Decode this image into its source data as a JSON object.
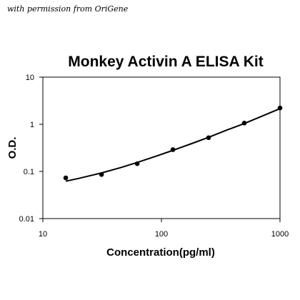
{
  "credit": "with permission from OriGene",
  "chart_data": {
    "type": "scatter",
    "title": "Monkey Activin A ELISA Kit",
    "xlabel": "Concentration(pg/ml)",
    "ylabel": "O.D.",
    "xscale": "log",
    "yscale": "log",
    "xlim": [
      10,
      1000
    ],
    "ylim": [
      0.01,
      10
    ],
    "xticks": [
      "10",
      "100",
      "1000"
    ],
    "yticks": [
      "0.01",
      "0.1",
      "1",
      "10"
    ],
    "grid": false,
    "legend": "none",
    "points": {
      "x": [
        15.6,
        31.25,
        62.5,
        125,
        250,
        500,
        1000
      ],
      "y": [
        0.073,
        0.086,
        0.146,
        0.29,
        0.52,
        1.06,
        2.22
      ]
    },
    "fit_curve": {
      "x": [
        15.6,
        20,
        31.25,
        45,
        62.5,
        90,
        125,
        180,
        250,
        350,
        500,
        700,
        1000
      ],
      "y": [
        0.062,
        0.071,
        0.093,
        0.12,
        0.155,
        0.21,
        0.28,
        0.39,
        0.53,
        0.74,
        1.04,
        1.48,
        2.15
      ]
    }
  }
}
